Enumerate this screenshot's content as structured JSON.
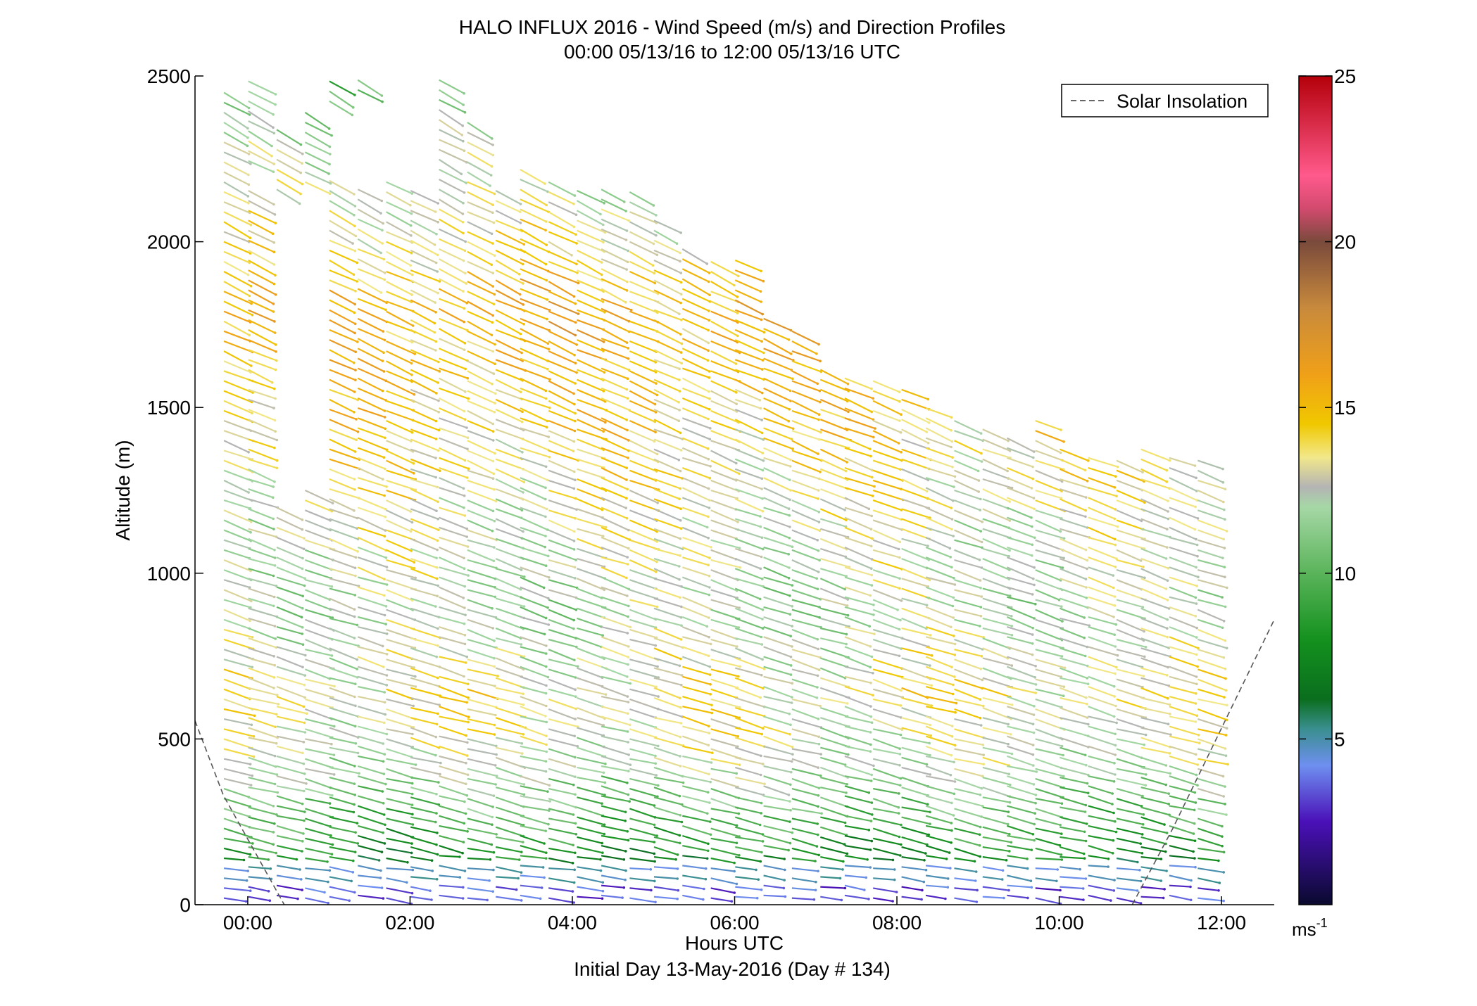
{
  "chart_data": {
    "type": "wind-barb-profile",
    "title": "HALO INFLUX 2016 - Wind Speed (m/s) and Direction Profiles",
    "subtitle": "00:00 05/13/16 to 12:00 05/13/16  UTC",
    "xlabel": "Hours UTC",
    "xlabel2": "Initial Day 13-May-2016 (Day # 134)",
    "ylabel": "Altitude (m)",
    "xlim": [
      -0.65,
      12.65
    ],
    "ylim": [
      0,
      2500
    ],
    "x_ticks": [
      0,
      2,
      4,
      6,
      8,
      10,
      12
    ],
    "x_tick_labels": [
      "00:00",
      "02:00",
      "04:00",
      "06:00",
      "08:00",
      "10:00",
      "12:00"
    ],
    "y_ticks": [
      0,
      500,
      1000,
      1500,
      2000,
      2500
    ],
    "y_tick_labels": [
      "0",
      "500",
      "1000",
      "1500",
      "2000",
      "2500"
    ],
    "legend": {
      "label": "Solar Insolation",
      "placement": "top-right"
    },
    "colorbar": {
      "range": [
        0,
        25
      ],
      "ticks": [
        5,
        10,
        15,
        20,
        25
      ],
      "tick_labels": [
        "5",
        "10",
        "15",
        "20",
        "25"
      ],
      "unit_label": "ms",
      "unit_exponent": "-1",
      "stops": [
        {
          "v": 0,
          "c": "#0a0a2e"
        },
        {
          "v": 2.5,
          "c": "#4a10b8"
        },
        {
          "v": 4.2,
          "c": "#6e8ff0"
        },
        {
          "v": 5.3,
          "c": "#3a8f8f"
        },
        {
          "v": 6.2,
          "c": "#0a6e1e"
        },
        {
          "v": 8.0,
          "c": "#14911e"
        },
        {
          "v": 10.0,
          "c": "#5ab45a"
        },
        {
          "v": 12.0,
          "c": "#a6d7a6"
        },
        {
          "v": 12.6,
          "c": "#b4b4b4"
        },
        {
          "v": 13.5,
          "c": "#f2e88a"
        },
        {
          "v": 14.5,
          "c": "#f0c800"
        },
        {
          "v": 16.0,
          "c": "#f0a018"
        },
        {
          "v": 18.0,
          "c": "#c88a3c"
        },
        {
          "v": 20.0,
          "c": "#7a4a3c"
        },
        {
          "v": 21.0,
          "c": "#d24a6e"
        },
        {
          "v": 22.0,
          "c": "#ff5a8c"
        },
        {
          "v": 25.0,
          "c": "#b4000a"
        }
      ]
    },
    "solar_insolation": [
      [
        [
          -0.65,
          555
        ],
        [
          -0.3,
          330
        ],
        [
          0.45,
          0
        ]
      ],
      [
        [
          10.9,
          0
        ],
        [
          11.4,
          230
        ],
        [
          12.65,
          860
        ]
      ]
    ],
    "profile_times": [
      -0.25,
      0.05,
      0.4,
      0.75,
      1.05,
      1.4,
      1.75,
      2.05,
      2.4,
      2.75,
      3.1,
      3.4,
      3.75,
      4.1,
      4.4,
      4.75,
      5.05,
      5.4,
      5.75,
      6.05,
      6.4,
      6.75,
      7.1,
      7.4,
      7.75,
      8.1,
      8.4,
      8.75,
      9.1,
      9.4,
      9.75,
      10.05,
      10.4,
      10.75,
      11.05,
      11.4,
      11.75
    ],
    "profile_tops": [
      2470,
      2500,
      2360,
      2400,
      2500,
      2500,
      2180,
      2180,
      2500,
      2380,
      2180,
      2230,
      2180,
      2160,
      2160,
      2160,
      2090,
      1980,
      1960,
      1950,
      1790,
      1740,
      1620,
      1590,
      1580,
      1580,
      1500,
      1470,
      1440,
      1420,
      1470,
      1380,
      1360,
      1360,
      1390,
      1370,
      1340
    ],
    "profile_gaps": [
      {
        "profile": 1,
        "from": 2160,
        "to": 2220
      },
      {
        "profile": 2,
        "from": 1200,
        "to": 2130
      },
      {
        "profile": 3,
        "from": 1270,
        "to": 2170
      },
      {
        "profile": 4,
        "from": 2190,
        "to": 2400
      },
      {
        "profile": 5,
        "from": 2180,
        "to": 2450
      }
    ],
    "altitude_step_m": 30,
    "speed_profile_mps": [
      {
        "alt": 0,
        "speed": 3.2
      },
      {
        "alt": 60,
        "speed": 4.2
      },
      {
        "alt": 100,
        "speed": 6.5
      },
      {
        "alt": 200,
        "speed": 8.5
      },
      {
        "alt": 320,
        "speed": 10.5
      },
      {
        "alt": 480,
        "speed": 12.6
      },
      {
        "alt": 650,
        "speed": 13.4
      },
      {
        "alt": 900,
        "speed": 12.0
      },
      {
        "alt": 1200,
        "speed": 13.0
      },
      {
        "alt": 1500,
        "speed": 14.3
      },
      {
        "alt": 1800,
        "speed": 15.5
      },
      {
        "alt": 2100,
        "speed": 13.0
      },
      {
        "alt": 2500,
        "speed": 10.5
      }
    ],
    "direction_note": "Wind barbs point down-right (westerly to west-northwesterly flow); near-surface barbs are short and blue-purple."
  }
}
